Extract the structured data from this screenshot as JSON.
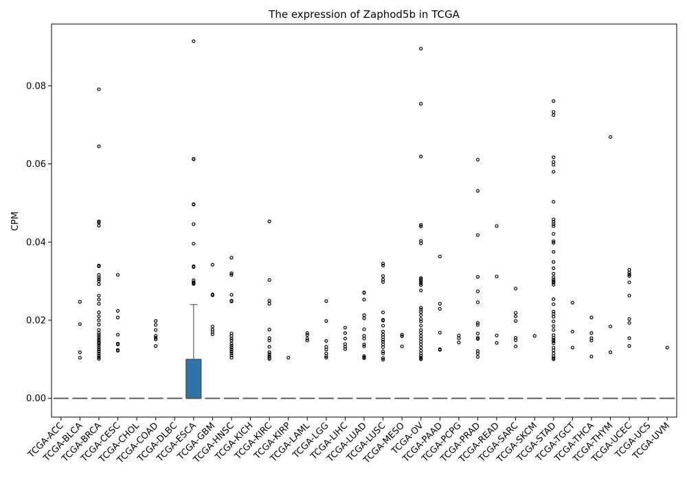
{
  "chart_data": {
    "type": "box",
    "title": "The expression of Zaphod5b in TCGA",
    "xlabel": "",
    "ylabel": "CPM",
    "ylim": [
      -0.0048,
      0.0958
    ],
    "yticks": [
      0.0,
      0.02,
      0.04,
      0.06,
      0.08
    ],
    "ytick_labels": [
      "0.00",
      "0.02",
      "0.04",
      "0.06",
      "0.08"
    ],
    "grid": false,
    "box_color": "#2f75a9",
    "median_color": "#555555",
    "categories": [
      "TCGA-ACC",
      "TCGA-BLCA",
      "TCGA-BRCA",
      "TCGA-CESC",
      "TCGA-CHOL",
      "TCGA-COAD",
      "TCGA-DLBC",
      "TCGA-ESCA",
      "TCGA-GBM",
      "TCGA-HNSC",
      "TCGA-KICH",
      "TCGA-KIRC",
      "TCGA-KIRP",
      "TCGA-LAML",
      "TCGA-LGG",
      "TCGA-LIHC",
      "TCGA-LUAD",
      "TCGA-LUSC",
      "TCGA-MESO",
      "TCGA-OV",
      "TCGA-PAAD",
      "TCGA-PCPG",
      "TCGA-PRAD",
      "TCGA-READ",
      "TCGA-SARC",
      "TCGA-SKCM",
      "TCGA-STAD",
      "TCGA-TGCT",
      "TCGA-THCA",
      "TCGA-THYM",
      "TCGA-UCEC",
      "TCGA-UCS",
      "TCGA-UVM"
    ],
    "boxes": [
      {
        "category": "TCGA-ACC",
        "q1": 0,
        "median": 0,
        "q3": 0,
        "whisker_low": 0,
        "whisker_high": 0,
        "outliers": []
      },
      {
        "category": "TCGA-BLCA",
        "q1": 0,
        "median": 0,
        "q3": 0,
        "whisker_low": 0,
        "whisker_high": 0,
        "outliers": [
          0.0247,
          0.019,
          0.0118,
          0.0104
        ]
      },
      {
        "category": "TCGA-BRCA",
        "q1": 0,
        "median": 0,
        "q3": 0,
        "whisker_low": 0,
        "whisker_high": 0,
        "outliers": [
          0.0791,
          0.0645,
          0.0453,
          0.045,
          0.0442,
          0.034,
          0.0338,
          0.0316,
          0.031,
          0.0305,
          0.03,
          0.0292,
          0.0263,
          0.0253,
          0.0242,
          0.022,
          0.021,
          0.02,
          0.0189,
          0.0175,
          0.0167,
          0.0162,
          0.0157,
          0.0152,
          0.0148,
          0.0143,
          0.014,
          0.0135,
          0.013,
          0.0125,
          0.012,
          0.0115,
          0.011,
          0.0105,
          0.0101
        ]
      },
      {
        "category": "TCGA-CESC",
        "q1": 0,
        "median": 0,
        "q3": 0,
        "whisker_low": 0,
        "whisker_high": 0,
        "outliers": [
          0.0316,
          0.0224,
          0.0207,
          0.0163,
          0.014,
          0.0138,
          0.0124,
          0.0122
        ]
      },
      {
        "category": "TCGA-CHOL",
        "q1": 0,
        "median": 0,
        "q3": 0,
        "whisker_low": 0,
        "whisker_high": 0,
        "outliers": []
      },
      {
        "category": "TCGA-COAD",
        "q1": 0,
        "median": 0,
        "q3": 0,
        "whisker_low": 0,
        "whisker_high": 0,
        "outliers": [
          0.0198,
          0.0188,
          0.0175,
          0.016,
          0.0155,
          0.0151,
          0.0134
        ]
      },
      {
        "category": "TCGA-DLBC",
        "q1": 0,
        "median": 0,
        "q3": 0,
        "whisker_low": 0,
        "whisker_high": 0,
        "outliers": []
      },
      {
        "category": "TCGA-ESCA",
        "q1": 0,
        "median": 0,
        "q3": 0.01,
        "whisker_low": 0,
        "whisker_high": 0.024,
        "outliers": [
          0.0914,
          0.0613,
          0.0612,
          0.0497,
          0.0496,
          0.0446,
          0.0396,
          0.0338,
          0.0336,
          0.0302,
          0.0297,
          0.0295,
          0.0293
        ]
      },
      {
        "category": "TCGA-GBM",
        "q1": 0,
        "median": 0,
        "q3": 0,
        "whisker_low": 0,
        "whisker_high": 0,
        "outliers": [
          0.0342,
          0.0266,
          0.0264,
          0.0184,
          0.0176,
          0.017,
          0.0164
        ]
      },
      {
        "category": "TCGA-HNSC",
        "q1": 0,
        "median": 0,
        "q3": 0,
        "whisker_low": 0,
        "whisker_high": 0,
        "outliers": [
          0.036,
          0.032,
          0.0316,
          0.0265,
          0.025,
          0.0248,
          0.0166,
          0.016,
          0.0153,
          0.0148,
          0.014,
          0.0135,
          0.013,
          0.0125,
          0.012,
          0.0115,
          0.011,
          0.0104
        ]
      },
      {
        "category": "TCGA-KICH",
        "q1": 0,
        "median": 0,
        "q3": 0,
        "whisker_low": 0,
        "whisker_high": 0,
        "outliers": []
      },
      {
        "category": "TCGA-KIRC",
        "q1": 0,
        "median": 0,
        "q3": 0,
        "whisker_low": 0,
        "whisker_high": 0,
        "outliers": [
          0.0453,
          0.0303,
          0.025,
          0.0242,
          0.0176,
          0.0154,
          0.0148,
          0.0132,
          0.0118,
          0.0113,
          0.0108,
          0.0104,
          0.0101
        ]
      },
      {
        "category": "TCGA-KIRP",
        "q1": 0,
        "median": 0,
        "q3": 0,
        "whisker_low": 0,
        "whisker_high": 0,
        "outliers": [
          0.0104
        ]
      },
      {
        "category": "TCGA-LAML",
        "q1": 0,
        "median": 0,
        "q3": 0,
        "whisker_low": 0,
        "whisker_high": 0,
        "outliers": [
          0.0167,
          0.0162,
          0.0153,
          0.0148
        ]
      },
      {
        "category": "TCGA-LGG",
        "q1": 0,
        "median": 0,
        "q3": 0,
        "whisker_low": 0,
        "whisker_high": 0,
        "outliers": [
          0.0249,
          0.0198,
          0.0147,
          0.0132,
          0.0125,
          0.0115,
          0.0108,
          0.0104
        ]
      },
      {
        "category": "TCGA-LIHC",
        "q1": 0,
        "median": 0,
        "q3": 0,
        "whisker_low": 0,
        "whisker_high": 0,
        "outliers": [
          0.0181,
          0.0167,
          0.0153,
          0.0139,
          0.0132,
          0.0126
        ]
      },
      {
        "category": "TCGA-LUAD",
        "q1": 0,
        "median": 0,
        "q3": 0,
        "whisker_low": 0,
        "whisker_high": 0,
        "outliers": [
          0.0271,
          0.027,
          0.0253,
          0.0213,
          0.0205,
          0.0177,
          0.016,
          0.0153,
          0.0138,
          0.0133,
          0.0108,
          0.0105,
          0.0103
        ]
      },
      {
        "category": "TCGA-LUSC",
        "q1": 0,
        "median": 0,
        "q3": 0,
        "whisker_low": 0,
        "whisker_high": 0,
        "outliers": [
          0.0345,
          0.034,
          0.0313,
          0.0304,
          0.0298,
          0.022,
          0.0201,
          0.0199,
          0.0186,
          0.0171,
          0.0163,
          0.0157,
          0.015,
          0.0145,
          0.0138,
          0.0131,
          0.012,
          0.0115,
          0.0103,
          0.0099
        ]
      },
      {
        "category": "TCGA-MESO",
        "q1": 0,
        "median": 0,
        "q3": 0,
        "whisker_low": 0,
        "whisker_high": 0,
        "outliers": [
          0.0163,
          0.0159,
          0.0133
        ]
      },
      {
        "category": "TCGA-OV",
        "q1": 0,
        "median": 0,
        "q3": 0,
        "whisker_low": 0,
        "whisker_high": 0,
        "outliers": [
          0.0895,
          0.0754,
          0.0619,
          0.0444,
          0.044,
          0.0403,
          0.0397,
          0.0308,
          0.0305,
          0.0302,
          0.0298,
          0.0294,
          0.029,
          0.0276,
          0.0232,
          0.0227,
          0.0221,
          0.0213,
          0.0203,
          0.0197,
          0.0186,
          0.0175,
          0.0168,
          0.016,
          0.0152,
          0.0145,
          0.0138,
          0.013,
          0.0122,
          0.0115,
          0.0109,
          0.0104,
          0.0101,
          0.01
        ]
      },
      {
        "category": "TCGA-PAAD",
        "q1": 0,
        "median": 0,
        "q3": 0,
        "whisker_low": 0,
        "whisker_high": 0,
        "outliers": [
          0.0363,
          0.0242,
          0.0229,
          0.0168,
          0.0126,
          0.0124
        ]
      },
      {
        "category": "TCGA-PCPG",
        "q1": 0,
        "median": 0,
        "q3": 0,
        "whisker_low": 0,
        "whisker_high": 0,
        "outliers": [
          0.0161,
          0.0154,
          0.0143
        ]
      },
      {
        "category": "TCGA-PRAD",
        "q1": 0,
        "median": 0,
        "q3": 0,
        "whisker_low": 0,
        "whisker_high": 0,
        "outliers": [
          0.0611,
          0.0531,
          0.0418,
          0.0311,
          0.0274,
          0.0246,
          0.0193,
          0.0188,
          0.0166,
          0.0155,
          0.0152,
          0.0121,
          0.0115,
          0.0106
        ]
      },
      {
        "category": "TCGA-READ",
        "q1": 0,
        "median": 0,
        "q3": 0,
        "whisker_low": 0,
        "whisker_high": 0,
        "outliers": [
          0.0441,
          0.0312,
          0.0161,
          0.0142
        ]
      },
      {
        "category": "TCGA-SARC",
        "q1": 0,
        "median": 0,
        "q3": 0,
        "whisker_low": 0,
        "whisker_high": 0,
        "outliers": [
          0.0281,
          0.0219,
          0.021,
          0.0198,
          0.0155,
          0.0149,
          0.0133
        ]
      },
      {
        "category": "TCGA-SKCM",
        "q1": 0,
        "median": 0,
        "q3": 0,
        "whisker_low": 0,
        "whisker_high": 0,
        "outliers": [
          0.016
        ]
      },
      {
        "category": "TCGA-STAD",
        "q1": 0,
        "median": 0,
        "q3": 0,
        "whisker_low": 0,
        "whisker_high": 0,
        "outliers": [
          0.0761,
          0.0733,
          0.0725,
          0.0617,
          0.0605,
          0.0598,
          0.058,
          0.0503,
          0.0458,
          0.0452,
          0.0446,
          0.0441,
          0.0421,
          0.0402,
          0.0398,
          0.0375,
          0.0349,
          0.0333,
          0.0319,
          0.031,
          0.0304,
          0.03,
          0.0296,
          0.0291,
          0.0254,
          0.0241,
          0.0222,
          0.0216,
          0.0209,
          0.0197,
          0.0185,
          0.0175,
          0.0162,
          0.0155,
          0.015,
          0.0146,
          0.0141,
          0.013,
          0.0123,
          0.0115,
          0.0108,
          0.0103,
          0.01
        ]
      },
      {
        "category": "TCGA-TGCT",
        "q1": 0,
        "median": 0,
        "q3": 0,
        "whisker_low": 0,
        "whisker_high": 0,
        "outliers": [
          0.0245,
          0.0171,
          0.013
        ]
      },
      {
        "category": "TCGA-THCA",
        "q1": 0,
        "median": 0,
        "q3": 0,
        "whisker_low": 0,
        "whisker_high": 0,
        "outliers": [
          0.0207,
          0.0167,
          0.0154,
          0.0148,
          0.0107
        ]
      },
      {
        "category": "TCGA-THYM",
        "q1": 0,
        "median": 0,
        "q3": 0,
        "whisker_low": 0,
        "whisker_high": 0,
        "outliers": [
          0.0669,
          0.0184,
          0.0118
        ]
      },
      {
        "category": "TCGA-UCEC",
        "q1": 0,
        "median": 0,
        "q3": 0,
        "whisker_low": 0,
        "whisker_high": 0,
        "outliers": [
          0.0329,
          0.0322,
          0.0317,
          0.0313,
          0.0297,
          0.0263,
          0.0203,
          0.0193,
          0.0154,
          0.0134
        ]
      },
      {
        "category": "TCGA-UCS",
        "q1": 0,
        "median": 0,
        "q3": 0,
        "whisker_low": 0,
        "whisker_high": 0,
        "outliers": []
      },
      {
        "category": "TCGA-UVM",
        "q1": 0,
        "median": 0,
        "q3": 0,
        "whisker_low": 0,
        "whisker_high": 0,
        "outliers": [
          0.013
        ]
      }
    ]
  }
}
